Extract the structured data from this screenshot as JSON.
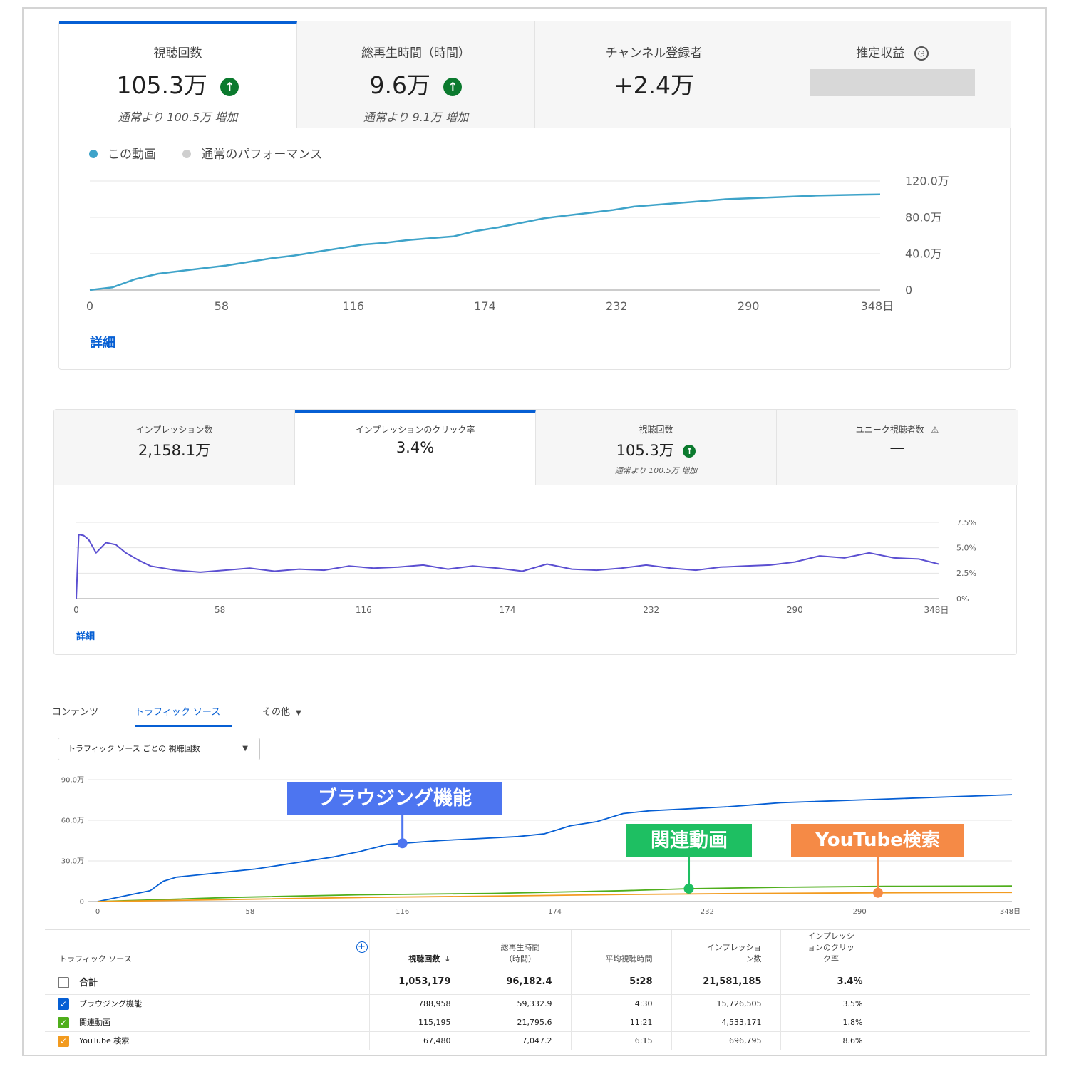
{
  "overview": {
    "tabs": [
      {
        "label": "視聴回数",
        "value": "105.3万",
        "sub": "通常より 100.5万 増加",
        "up": true
      },
      {
        "label": "総再生時間（時間）",
        "value": "9.6万",
        "sub": "通常より 9.1万 増加",
        "up": true
      },
      {
        "label": "チャンネル登録者",
        "value": "+2.4万",
        "sub": "",
        "up": false
      },
      {
        "label": "推定収益",
        "value": "",
        "sub": "",
        "up": false
      }
    ],
    "legend": {
      "this_video": "この動画",
      "typical": "通常のパフォーマンス"
    },
    "details_link": "詳細"
  },
  "reach": {
    "tabs": [
      {
        "label": "インプレッション数",
        "value": "2,158.1万",
        "sub": ""
      },
      {
        "label": "インプレッションのクリック率",
        "value": "3.4%",
        "sub": ""
      },
      {
        "label": "視聴回数",
        "value": "105.3万",
        "sub": "通常より 100.5万 増加"
      },
      {
        "label": "ユニーク視聴者数",
        "value": "—",
        "sub": ""
      }
    ],
    "details_link": "詳細"
  },
  "traffic": {
    "tabs": {
      "content": "コンテンツ",
      "traffic_source": "トラフィック ソース",
      "more": "その他"
    },
    "dropdown": "トラフィック ソース ごとの 視聴回数",
    "callouts": {
      "browse": "ブラウジング機能",
      "related": "関連動画",
      "search": "YouTube検索"
    },
    "table": {
      "headers": {
        "source": "トラフィック ソース",
        "views": "視聴回数",
        "watch_time": "総再生時間\n（時間）",
        "avg": "平均視聴時間",
        "impr": "インプレッショ\nン数",
        "ctr": "インプレッシ\nョンのクリッ\nク率"
      },
      "total": {
        "name": "合計",
        "views": "1,053,179",
        "watch_time": "96,182.4",
        "avg": "5:28",
        "impr": "21,581,185",
        "ctr": "3.4%"
      },
      "rows": [
        {
          "name": "ブラウジング機能",
          "views": "788,958",
          "watch_time": "59,332.9",
          "avg": "4:30",
          "impr": "15,726,505",
          "ctr": "3.5%",
          "color": "#065fd4"
        },
        {
          "name": "関連動画",
          "views": "115,195",
          "watch_time": "21,795.6",
          "avg": "11:21",
          "impr": "4,533,171",
          "ctr": "1.8%",
          "color": "#4fae1c"
        },
        {
          "name": "YouTube 検索",
          "views": "67,480",
          "watch_time": "7,047.2",
          "avg": "6:15",
          "impr": "696,795",
          "ctr": "8.6%",
          "color": "#f29b20"
        }
      ]
    }
  },
  "chart_data": [
    {
      "type": "line",
      "x_ticks": [
        "0",
        "58",
        "116",
        "174",
        "232",
        "290",
        "348日"
      ],
      "y_ticks": [
        "0",
        "40.0万",
        "80.0万",
        "120.0万"
      ],
      "ylim": [
        0,
        1200000
      ],
      "series": [
        {
          "name": "この動画",
          "color": "#3ea3c9",
          "x": [
            0,
            10,
            20,
            30,
            40,
            50,
            60,
            70,
            80,
            90,
            100,
            110,
            120,
            130,
            140,
            150,
            160,
            170,
            180,
            190,
            200,
            210,
            220,
            230,
            240,
            260,
            280,
            300,
            320,
            340,
            348
          ],
          "y": [
            0,
            30000,
            120000,
            180000,
            210000,
            240000,
            270000,
            310000,
            350000,
            380000,
            420000,
            460000,
            500000,
            520000,
            550000,
            570000,
            590000,
            650000,
            690000,
            740000,
            790000,
            820000,
            850000,
            880000,
            920000,
            960000,
            1000000,
            1020000,
            1040000,
            1050000,
            1053000
          ]
        }
      ]
    },
    {
      "type": "line",
      "x_ticks": [
        "0",
        "58",
        "116",
        "174",
        "232",
        "290",
        "348日"
      ],
      "y_ticks": [
        "0%",
        "2.5%",
        "5.0%",
        "7.5%"
      ],
      "ylim": [
        0,
        7.5
      ],
      "series": [
        {
          "name": "インプレッションのクリック率",
          "color": "#5b4fd1",
          "x": [
            0,
            1,
            3,
            5,
            8,
            12,
            16,
            20,
            25,
            30,
            40,
            50,
            60,
            70,
            80,
            90,
            100,
            110,
            120,
            130,
            140,
            150,
            160,
            170,
            180,
            190,
            200,
            210,
            220,
            230,
            240,
            250,
            260,
            270,
            280,
            290,
            300,
            310,
            320,
            330,
            340,
            348
          ],
          "y": [
            0,
            6.3,
            6.2,
            5.8,
            4.5,
            5.5,
            5.3,
            4.5,
            3.8,
            3.2,
            2.8,
            2.6,
            2.8,
            3.0,
            2.7,
            2.9,
            2.8,
            3.2,
            3.0,
            3.1,
            3.3,
            2.9,
            3.2,
            3.0,
            2.7,
            3.4,
            2.9,
            2.8,
            3.0,
            3.3,
            3.0,
            2.8,
            3.1,
            3.2,
            3.3,
            3.6,
            4.2,
            4.0,
            4.5,
            4.0,
            3.9,
            3.4
          ]
        }
      ]
    },
    {
      "type": "line",
      "x_ticks": [
        "0",
        "58",
        "116",
        "174",
        "232",
        "290",
        "348日"
      ],
      "y_ticks": [
        "0",
        "30.0万",
        "60.0万",
        "90.0万"
      ],
      "ylim": [
        0,
        900000
      ],
      "series": [
        {
          "name": "ブラウジング機能",
          "color": "#065fd4",
          "x": [
            0,
            10,
            20,
            25,
            30,
            40,
            50,
            60,
            70,
            80,
            90,
            100,
            110,
            116,
            130,
            140,
            160,
            170,
            180,
            190,
            200,
            210,
            220,
            240,
            260,
            290,
            320,
            348
          ],
          "y": [
            0,
            40000,
            80000,
            150000,
            180000,
            200000,
            220000,
            240000,
            270000,
            300000,
            330000,
            370000,
            420000,
            430000,
            450000,
            460000,
            480000,
            500000,
            560000,
            590000,
            650000,
            670000,
            680000,
            700000,
            730000,
            750000,
            770000,
            789000
          ]
        },
        {
          "name": "関連動画",
          "color": "#4fae1c",
          "x": [
            0,
            50,
            100,
            150,
            200,
            225,
            260,
            300,
            348
          ],
          "y": [
            0,
            30000,
            50000,
            60000,
            80000,
            95000,
            105000,
            112000,
            115000
          ]
        },
        {
          "name": "YouTube検索",
          "color": "#f29b20",
          "x": [
            0,
            50,
            100,
            150,
            200,
            250,
            300,
            348
          ],
          "y": [
            0,
            15000,
            30000,
            40000,
            52000,
            60000,
            65000,
            67500
          ]
        }
      ]
    }
  ]
}
